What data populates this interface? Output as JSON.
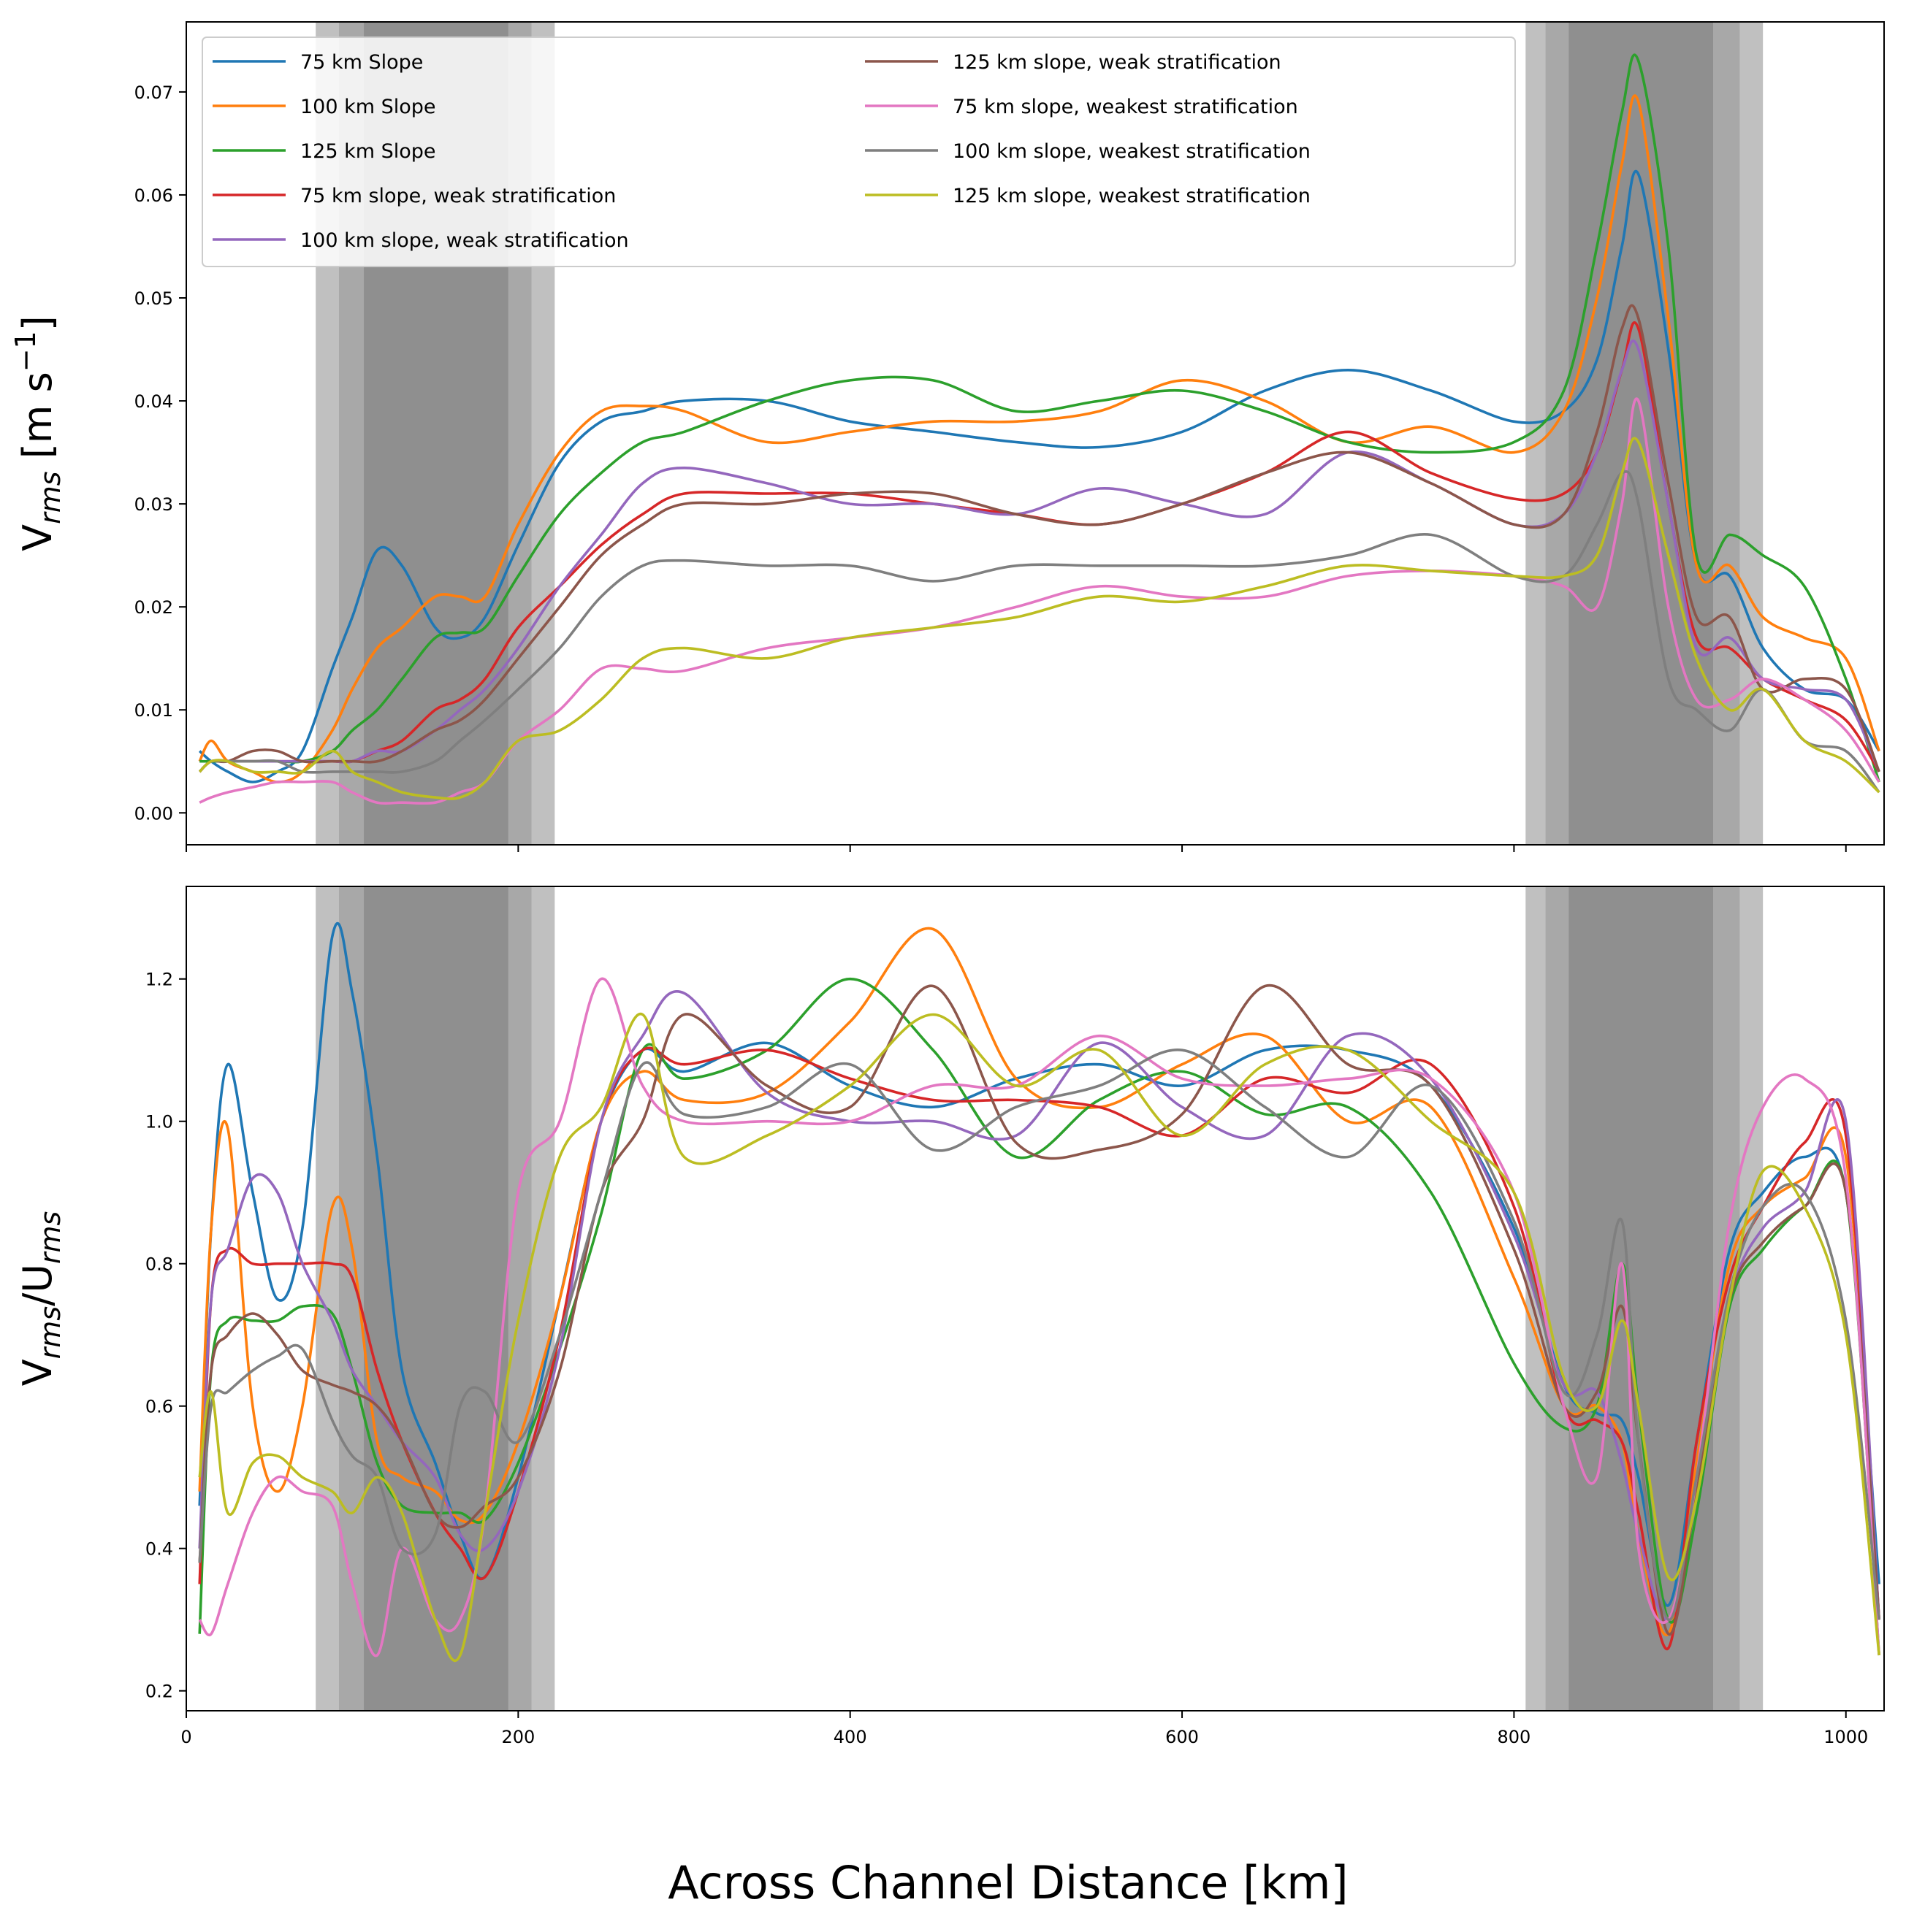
{
  "chart_data": [
    {
      "type": "line",
      "panel": "top",
      "ylabel_parts": [
        {
          "t": "V",
          "s": "n"
        },
        {
          "t": "rms",
          "s": "sub"
        },
        {
          "t": " [m s",
          "s": "n"
        },
        {
          "t": "−1",
          "s": "sup"
        },
        {
          "t": "]",
          "s": "n"
        }
      ],
      "xlim": [
        0,
        1023
      ],
      "ylim": [
        -0.0031,
        0.0768
      ],
      "xticks": [
        0,
        200,
        400,
        600,
        800,
        1000
      ],
      "show_xticklabels": false,
      "yticks": [
        "0.00",
        "0.01",
        "0.02",
        "0.03",
        "0.04",
        "0.05",
        "0.06",
        "0.07"
      ],
      "legend_placement": "top-left",
      "shaded_regions": [
        {
          "range": [
            78,
            222
          ],
          "shade": "light"
        },
        {
          "range": [
            92,
            208
          ],
          "shade": "medium"
        },
        {
          "range": [
            107,
            194
          ],
          "shade": "dark"
        },
        {
          "range": [
            807,
            950
          ],
          "shade": "light"
        },
        {
          "range": [
            819,
            936
          ],
          "shade": "medium"
        },
        {
          "range": [
            833,
            920
          ],
          "shade": "dark"
        }
      ],
      "series": [
        {
          "name": "75 km Slope",
          "color": "#1f77b4",
          "values": [
            0.006,
            0.005,
            0.004,
            0.003,
            0.004,
            0.006,
            0.014,
            0.019,
            0.0255,
            0.024,
            0.018,
            0.017,
            0.019,
            0.026,
            0.034,
            0.038,
            0.039,
            0.04,
            0.04,
            0.038,
            0.037,
            0.036,
            0.0355,
            0.037,
            0.041,
            0.043,
            0.041,
            0.038,
            0.039,
            0.044,
            0.055,
            0.062,
            0.045,
            0.024,
            0.023,
            0.016,
            0.012,
            0.011,
            0.006
          ]
        },
        {
          "name": "100 km Slope",
          "color": "#ff7f0e",
          "values": [
            0.005,
            0.007,
            0.005,
            0.004,
            0.003,
            0.004,
            0.008,
            0.012,
            0.016,
            0.018,
            0.021,
            0.021,
            0.021,
            0.028,
            0.035,
            0.039,
            0.0395,
            0.039,
            0.036,
            0.037,
            0.038,
            0.038,
            0.039,
            0.042,
            0.04,
            0.036,
            0.0375,
            0.035,
            0.039,
            0.05,
            0.063,
            0.069,
            0.048,
            0.024,
            0.024,
            0.019,
            0.017,
            0.015,
            0.006
          ]
        },
        {
          "name": "125 km Slope",
          "color": "#2ca02c",
          "values": [
            0.005,
            0.005,
            0.005,
            0.005,
            0.005,
            0.005,
            0.006,
            0.008,
            0.01,
            0.013,
            0.017,
            0.0175,
            0.018,
            0.023,
            0.029,
            0.033,
            0.036,
            0.037,
            0.04,
            0.042,
            0.042,
            0.039,
            0.04,
            0.041,
            0.039,
            0.036,
            0.035,
            0.036,
            0.041,
            0.055,
            0.068,
            0.073,
            0.055,
            0.025,
            0.027,
            0.025,
            0.022,
            0.013,
            0.003
          ]
        },
        {
          "name": "75 km slope, weak stratification",
          "color": "#d62728",
          "values": [
            0.004,
            0.005,
            0.005,
            0.005,
            0.005,
            0.005,
            0.005,
            0.005,
            0.006,
            0.007,
            0.01,
            0.011,
            0.013,
            0.018,
            0.022,
            0.026,
            0.029,
            0.031,
            0.031,
            0.031,
            0.03,
            0.029,
            0.028,
            0.03,
            0.033,
            0.037,
            0.033,
            0.0305,
            0.031,
            0.035,
            0.043,
            0.047,
            0.03,
            0.017,
            0.016,
            0.013,
            0.011,
            0.009,
            0.004
          ]
        },
        {
          "name": "100 km slope, weak stratification",
          "color": "#9467bd",
          "values": [
            0.004,
            0.005,
            0.005,
            0.005,
            0.005,
            0.005,
            0.005,
            0.005,
            0.006,
            0.006,
            0.008,
            0.01,
            0.012,
            0.016,
            0.022,
            0.027,
            0.032,
            0.0335,
            0.032,
            0.03,
            0.03,
            0.029,
            0.0315,
            0.03,
            0.029,
            0.035,
            0.032,
            0.028,
            0.029,
            0.035,
            0.043,
            0.045,
            0.03,
            0.016,
            0.017,
            0.013,
            0.012,
            0.011,
            0.004
          ]
        },
        {
          "name": "125 km slope, weak stratification",
          "color": "#8c564b",
          "values": [
            0.004,
            0.005,
            0.005,
            0.006,
            0.006,
            0.005,
            0.005,
            0.005,
            0.005,
            0.006,
            0.008,
            0.009,
            0.011,
            0.015,
            0.02,
            0.025,
            0.028,
            0.03,
            0.03,
            0.031,
            0.031,
            0.029,
            0.028,
            0.03,
            0.033,
            0.035,
            0.032,
            0.028,
            0.029,
            0.037,
            0.047,
            0.048,
            0.032,
            0.019,
            0.019,
            0.012,
            0.013,
            0.012,
            0.004
          ]
        },
        {
          "name": "75 km slope, weakest stratification",
          "color": "#e377c2",
          "values": [
            0.001,
            0.0015,
            0.002,
            0.0025,
            0.003,
            0.003,
            0.003,
            0.002,
            0.001,
            0.001,
            0.001,
            0.002,
            0.003,
            0.007,
            0.01,
            0.014,
            0.014,
            0.0138,
            0.016,
            0.017,
            0.018,
            0.02,
            0.022,
            0.021,
            0.021,
            0.023,
            0.0235,
            0.023,
            0.022,
            0.02,
            0.03,
            0.04,
            0.02,
            0.011,
            0.011,
            0.013,
            0.011,
            0.008,
            0.003
          ]
        },
        {
          "name": "100 km slope, weakest stratification",
          "color": "#7f7f7f",
          "values": [
            0.004,
            0.005,
            0.005,
            0.005,
            0.005,
            0.004,
            0.004,
            0.004,
            0.004,
            0.004,
            0.005,
            0.007,
            0.009,
            0.012,
            0.016,
            0.021,
            0.024,
            0.0245,
            0.024,
            0.024,
            0.0225,
            0.024,
            0.024,
            0.024,
            0.024,
            0.025,
            0.027,
            0.023,
            0.023,
            0.028,
            0.033,
            0.03,
            0.013,
            0.01,
            0.008,
            0.012,
            0.007,
            0.006,
            0.002
          ]
        },
        {
          "name": "125 km slope, weakest stratification",
          "color": "#bcbd22",
          "values": [
            0.004,
            0.005,
            0.005,
            0.004,
            0.004,
            0.004,
            0.006,
            0.004,
            0.003,
            0.002,
            0.0015,
            0.0015,
            0.003,
            0.007,
            0.008,
            0.011,
            0.015,
            0.016,
            0.015,
            0.017,
            0.018,
            0.019,
            0.021,
            0.0205,
            0.022,
            0.024,
            0.0235,
            0.023,
            0.023,
            0.025,
            0.033,
            0.036,
            0.025,
            0.015,
            0.01,
            0.012,
            0.007,
            0.005,
            0.002
          ]
        }
      ]
    },
    {
      "type": "line",
      "panel": "bottom",
      "ylabel_parts": [
        {
          "t": "V",
          "s": "n"
        },
        {
          "t": "rms",
          "s": "sub"
        },
        {
          "t": "/U",
          "s": "n"
        },
        {
          "t": "rms",
          "s": "sub"
        }
      ],
      "xlim": [
        0,
        1023
      ],
      "ylim": [
        0.172,
        1.33
      ],
      "xticks": [
        0,
        200,
        400,
        600,
        800,
        1000
      ],
      "xticklabels": [
        "0",
        "200",
        "400",
        "600",
        "800",
        "1000"
      ],
      "yticks": [
        "0.2",
        "0.4",
        "0.6",
        "0.8",
        "1.0",
        "1.2"
      ],
      "series": [
        {
          "name": "75 km Slope",
          "values": [
            0.46,
            0.85,
            1.08,
            0.9,
            0.75,
            0.85,
            1.26,
            1.18,
            0.95,
            0.65,
            0.52,
            0.42,
            0.36,
            0.5,
            0.75,
            1.0,
            1.1,
            1.07,
            1.11,
            1.05,
            1.02,
            1.06,
            1.08,
            1.05,
            1.1,
            1.1,
            1.05,
            0.85,
            0.63,
            0.59,
            0.58,
            0.5,
            0.32,
            0.55,
            0.82,
            0.9,
            0.95,
            0.9,
            0.35
          ]
        },
        {
          "name": "100 km Slope",
          "values": [
            0.48,
            0.85,
            0.99,
            0.6,
            0.48,
            0.6,
            0.88,
            0.82,
            0.55,
            0.5,
            0.48,
            0.44,
            0.45,
            0.55,
            0.75,
            1.0,
            1.07,
            1.03,
            1.04,
            1.14,
            1.27,
            1.06,
            1.02,
            1.08,
            1.12,
            1.0,
            1.02,
            0.78,
            0.6,
            0.6,
            0.55,
            0.42,
            0.28,
            0.52,
            0.8,
            0.88,
            0.92,
            0.95,
            0.3
          ]
        },
        {
          "name": "125 km Slope",
          "values": [
            0.28,
            0.65,
            0.72,
            0.72,
            0.72,
            0.74,
            0.73,
            0.65,
            0.52,
            0.46,
            0.45,
            0.45,
            0.44,
            0.52,
            0.68,
            0.87,
            1.1,
            1.06,
            1.1,
            1.2,
            1.1,
            0.95,
            1.03,
            1.07,
            1.01,
            1.02,
            0.9,
            0.66,
            0.57,
            0.6,
            0.8,
            0.6,
            0.3,
            0.45,
            0.74,
            0.82,
            0.88,
            0.9,
            0.25
          ]
        },
        {
          "name": "75 km slope, weak stratification",
          "values": [
            0.35,
            0.75,
            0.82,
            0.8,
            0.8,
            0.8,
            0.8,
            0.78,
            0.65,
            0.55,
            0.45,
            0.4,
            0.36,
            0.48,
            0.7,
            1.0,
            1.1,
            1.08,
            1.1,
            1.06,
            1.03,
            1.03,
            1.02,
            0.98,
            1.06,
            1.04,
            1.08,
            0.88,
            0.6,
            0.58,
            0.55,
            0.45,
            0.26,
            0.55,
            0.78,
            0.88,
            0.97,
            0.98,
            0.3
          ]
        },
        {
          "name": "100 km slope, weak stratification",
          "values": [
            0.4,
            0.75,
            0.82,
            0.92,
            0.9,
            0.8,
            0.72,
            0.65,
            0.6,
            0.55,
            0.5,
            0.42,
            0.4,
            0.48,
            0.68,
            1.0,
            1.12,
            1.18,
            1.04,
            1.0,
            1.0,
            0.98,
            1.11,
            1.02,
            0.98,
            1.12,
            1.06,
            0.84,
            0.63,
            0.62,
            0.52,
            0.42,
            0.3,
            0.48,
            0.75,
            0.85,
            0.9,
            1.0,
            0.3
          ]
        },
        {
          "name": "125 km slope, weak stratification",
          "values": [
            0.38,
            0.65,
            0.7,
            0.73,
            0.7,
            0.65,
            0.63,
            0.62,
            0.6,
            0.55,
            0.45,
            0.43,
            0.46,
            0.5,
            0.65,
            0.9,
            1.0,
            1.15,
            1.05,
            1.02,
            1.19,
            0.97,
            0.96,
            1.01,
            1.19,
            1.08,
            1.05,
            0.82,
            0.6,
            0.62,
            0.74,
            0.55,
            0.28,
            0.48,
            0.75,
            0.83,
            0.88,
            0.9,
            0.3
          ]
        },
        {
          "name": "75 km slope, weakest stratification",
          "values": [
            0.3,
            0.28,
            0.35,
            0.45,
            0.5,
            0.48,
            0.46,
            0.35,
            0.25,
            0.4,
            0.3,
            0.3,
            0.45,
            0.9,
            1.0,
            1.2,
            1.05,
            1.0,
            1.0,
            1.0,
            1.05,
            1.05,
            1.12,
            1.06,
            1.05,
            1.06,
            1.06,
            0.9,
            0.6,
            0.5,
            0.8,
            0.4,
            0.3,
            0.5,
            0.86,
            1.02,
            1.06,
            0.92,
            0.25
          ]
        },
        {
          "name": "100 km slope, weakest stratification",
          "values": [
            0.38,
            0.6,
            0.62,
            0.65,
            0.67,
            0.68,
            0.58,
            0.53,
            0.5,
            0.4,
            0.42,
            0.6,
            0.62,
            0.55,
            0.7,
            0.9,
            1.08,
            1.01,
            1.02,
            1.08,
            0.96,
            1.02,
            1.05,
            1.1,
            1.02,
            0.95,
            1.05,
            0.86,
            0.62,
            0.7,
            0.86,
            0.55,
            0.3,
            0.5,
            0.76,
            0.88,
            0.9,
            0.72,
            0.3
          ]
        },
        {
          "name": "125 km slope, weakest stratification",
          "values": [
            0.5,
            0.62,
            0.45,
            0.52,
            0.53,
            0.5,
            0.48,
            0.45,
            0.5,
            0.45,
            0.3,
            0.25,
            0.45,
            0.72,
            0.95,
            1.02,
            1.15,
            0.95,
            0.98,
            1.05,
            1.15,
            1.05,
            1.1,
            0.98,
            1.08,
            1.1,
            1.0,
            0.9,
            0.64,
            0.6,
            0.72,
            0.6,
            0.36,
            0.47,
            0.75,
            0.93,
            0.88,
            0.7,
            0.25
          ]
        }
      ]
    }
  ],
  "x": [
    8,
    15,
    25,
    40,
    55,
    70,
    88,
    100,
    115,
    130,
    150,
    165,
    180,
    200,
    225,
    250,
    275,
    300,
    350,
    400,
    450,
    500,
    550,
    600,
    650,
    700,
    750,
    800,
    830,
    850,
    865,
    875,
    893,
    910,
    930,
    950,
    975,
    1000,
    1020
  ],
  "xlabel": "Across Channel Distance [km]",
  "shade_colors": {
    "light": "#c0c0c0",
    "medium": "#a8a8a8",
    "dark": "#8f8f8f"
  }
}
